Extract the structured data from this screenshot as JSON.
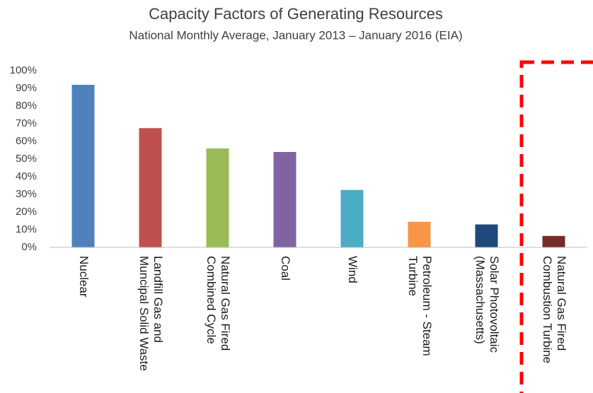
{
  "chart_data": {
    "type": "bar",
    "title": "Capacity Factors of Generating Resources",
    "subtitle": "National Monthly Average, January 2013 – January 2016 (EIA)",
    "categories": [
      "Nuclear",
      "Landfill Gas and\nMuncipal Solid Waste",
      "Natural Gas Fired\nCombined Cycle",
      "Coal",
      "Wind",
      "Petroleum - Steam\nTurbine",
      "Solar Photovoltaic\n(Massachusetts)",
      "Natural Gas Fired\nCombustion Turbine"
    ],
    "values": [
      92,
      67.5,
      56,
      54,
      32.5,
      14.5,
      13,
      6.5
    ],
    "colors": [
      "#4f81bd",
      "#c0504d",
      "#9bbb59",
      "#8064a2",
      "#4bacc6",
      "#f79646",
      "#1f497d",
      "#772c2a"
    ],
    "ylim": [
      0,
      100
    ],
    "yticks": [
      {
        "value": 0,
        "label": "0%"
      },
      {
        "value": 10,
        "label": "10%"
      },
      {
        "value": 20,
        "label": "20%"
      },
      {
        "value": 30,
        "label": "30%"
      },
      {
        "value": 40,
        "label": "40%"
      },
      {
        "value": 50,
        "label": "50%"
      },
      {
        "value": 60,
        "label": "60%"
      },
      {
        "value": 70,
        "label": "70%"
      },
      {
        "value": 80,
        "label": "80%"
      },
      {
        "value": 90,
        "label": "90%"
      },
      {
        "value": 100,
        "label": "100%"
      }
    ],
    "grid": false
  }
}
